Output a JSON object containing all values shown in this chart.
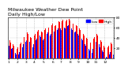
{
  "title": "Milwaukee Weather Dew Point",
  "subtitle": "Daily High/Low",
  "background_color": "#ffffff",
  "plot_bg_color": "#ffffff",
  "grid_color": "#dddddd",
  "ylim": [
    0,
    80
  ],
  "yticks": [
    20,
    40,
    60,
    80
  ],
  "high_color": "#ff0000",
  "low_color": "#0000ff",
  "legend_high": "High",
  "legend_low": "Low",
  "title_fontsize": 4.5,
  "tick_fontsize": 3.2,
  "legend_fontsize": 3.2,
  "high_values": [
    38,
    35,
    30,
    32,
    28,
    25,
    22,
    20,
    18,
    22,
    25,
    28,
    30,
    35,
    40,
    42,
    45,
    48,
    50,
    48,
    45,
    42,
    40,
    38,
    42,
    45,
    48,
    50,
    52,
    55,
    58,
    55,
    52,
    50,
    52,
    55,
    58,
    60,
    62,
    60,
    58,
    62,
    65,
    68,
    65,
    62,
    65,
    68,
    70,
    72,
    70,
    68,
    72,
    75,
    73,
    70,
    72,
    75,
    78,
    76,
    74,
    72,
    70,
    68,
    65,
    68,
    65,
    62,
    60,
    58,
    55,
    52,
    50,
    48,
    45,
    42,
    40,
    38,
    35,
    32,
    30,
    28,
    35,
    38,
    42,
    45,
    48,
    45,
    42,
    38,
    35,
    32,
    28,
    25,
    22,
    20,
    18,
    22,
    25,
    28,
    30,
    28,
    25
  ],
  "low_values": [
    25,
    22,
    18,
    20,
    15,
    12,
    10,
    8,
    5,
    8,
    12,
    15,
    18,
    22,
    28,
    30,
    32,
    35,
    38,
    35,
    32,
    28,
    25,
    22,
    28,
    30,
    35,
    38,
    40,
    42,
    45,
    42,
    38,
    35,
    38,
    42,
    45,
    48,
    50,
    48,
    45,
    48,
    52,
    55,
    52,
    48,
    50,
    55,
    58,
    60,
    58,
    55,
    58,
    62,
    60,
    58,
    60,
    62,
    65,
    62,
    60,
    58,
    55,
    52,
    50,
    52,
    50,
    48,
    45,
    42,
    40,
    38,
    35,
    32,
    28,
    25,
    22,
    20,
    18,
    15,
    12,
    10,
    18,
    22,
    28,
    32,
    35,
    32,
    28,
    22,
    18,
    15,
    12,
    8,
    5,
    3,
    2,
    5,
    8,
    12,
    15,
    10,
    8
  ],
  "month_labels": [
    "1",
    "2",
    "3",
    "4",
    "5",
    "6",
    "7",
    "8",
    "9",
    "10",
    "11",
    "12",
    "1"
  ],
  "month_positions": [
    0,
    8,
    17,
    25,
    34,
    43,
    51,
    60,
    68,
    77,
    85,
    94,
    102
  ]
}
